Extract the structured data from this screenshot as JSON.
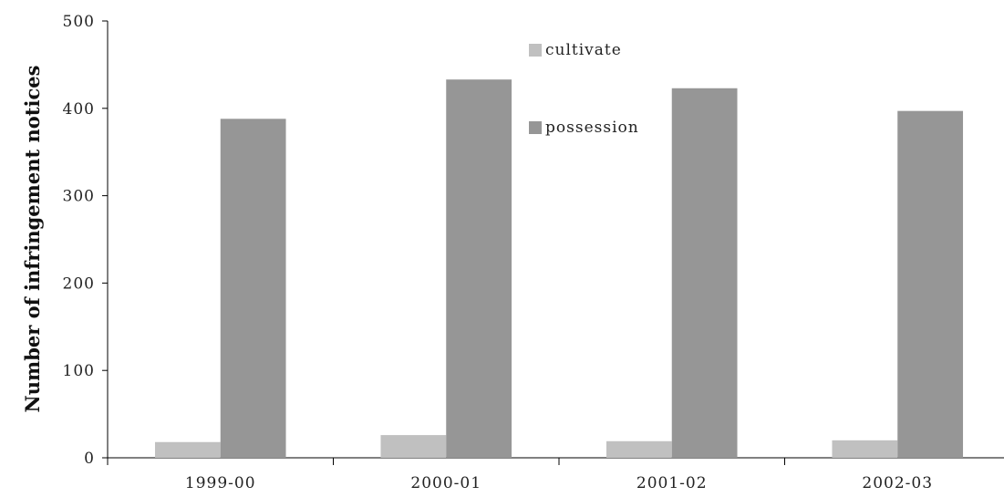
{
  "chart_data": {
    "type": "bar",
    "categories": [
      "1999-00",
      "2000-01",
      "2001-02",
      "2002-03"
    ],
    "series": [
      {
        "name": "cultivate",
        "values": [
          18,
          26,
          19,
          20
        ],
        "color": "#c0c0c0"
      },
      {
        "name": "possession",
        "values": [
          388,
          433,
          423,
          397
        ],
        "color": "#969696"
      }
    ],
    "title": "",
    "xlabel": "",
    "ylabel": "Number of infringement notices",
    "ylim": [
      0,
      500
    ],
    "yticks": [
      0,
      100,
      200,
      300,
      400,
      500
    ],
    "grid": false,
    "legend_position": "top-center"
  }
}
